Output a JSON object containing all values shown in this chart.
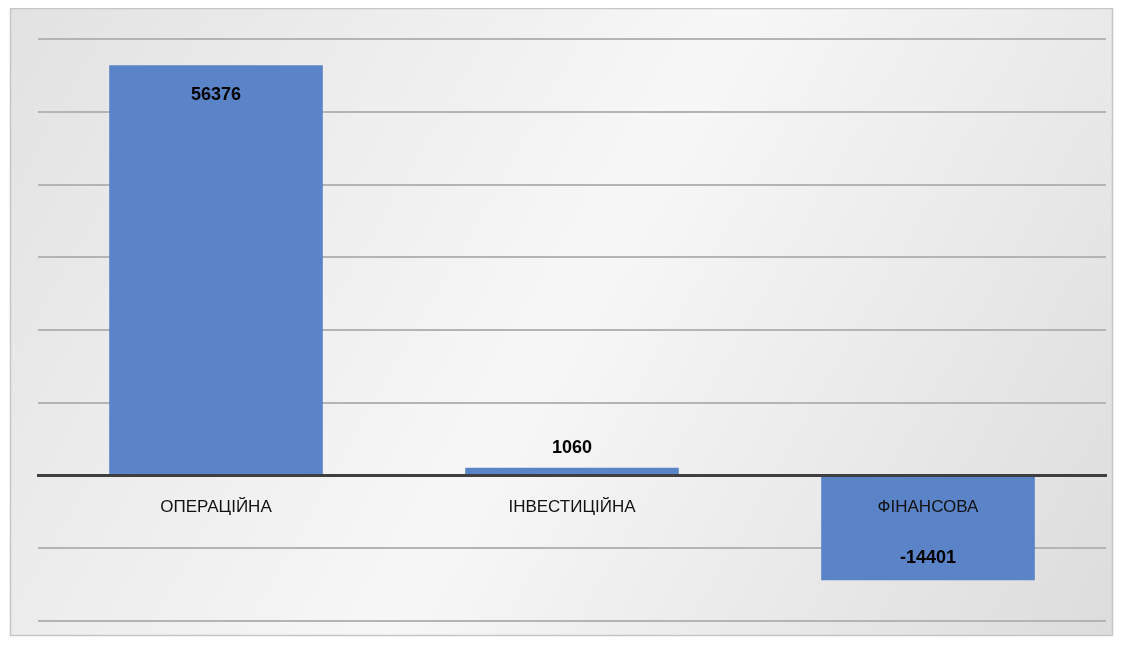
{
  "chart_data": {
    "type": "bar",
    "categories": [
      "ОПЕРАЦІЙНА",
      "ІНВЕСТИЦІЙНА",
      "ФІНАНСОВА"
    ],
    "values": [
      56376,
      1060,
      -14401
    ],
    "color": "#5a83c8",
    "ylim": [
      -20000,
      60000
    ],
    "yticks": [
      {
        "value": -20000,
        "label": null
      },
      {
        "value": -10000,
        "label": null
      },
      {
        "value": 0,
        "label": null
      },
      {
        "value": 10000,
        "label": null
      },
      {
        "value": 20000,
        "label": null
      },
      {
        "value": 30000,
        "label": null
      },
      {
        "value": 40000,
        "label": null
      },
      {
        "value": 50000,
        "label": null
      },
      {
        "value": 60000,
        "label": null
      }
    ],
    "grid": "y",
    "tick_labels": "x",
    "data_labels": true
  }
}
